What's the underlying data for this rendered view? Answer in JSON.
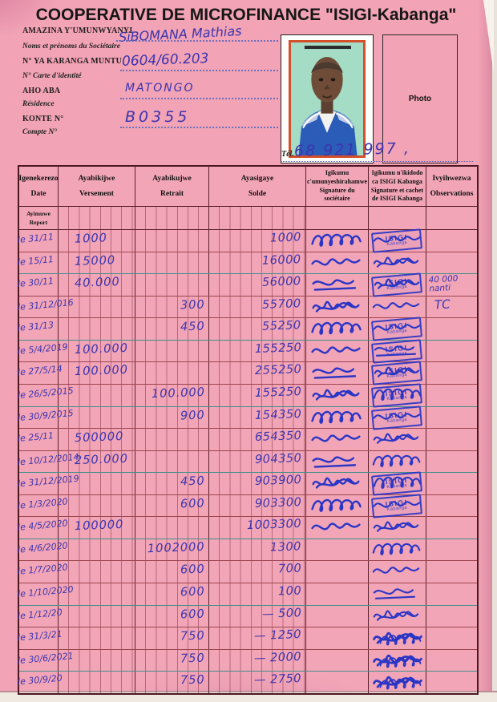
{
  "header": {
    "title": "COOPERATIVE DE MICROFINANCE \"ISIGI-Kabanga\""
  },
  "member": {
    "fields": [
      {
        "label_rn": "AMAZINA Y'UMUNWYANYI",
        "label_fr": "Noms et prénoms du Sociétaire",
        "value": "SiBOMANA Mathias"
      },
      {
        "label_rn": "N° YA KARANGA MUNTU",
        "label_fr": "N° Carte d'identité",
        "value": "0604/60.203"
      },
      {
        "label_rn": "AHO ABA",
        "label_fr": "Résidence",
        "value": "MATONGO"
      },
      {
        "label_rn": "KONTE N°",
        "label_fr": "Compte N°",
        "value": "B0355"
      }
    ],
    "photo_label": "Photo",
    "tel_label": "Tél.",
    "tel_value": "68 921 997 ,"
  },
  "table": {
    "columns": [
      {
        "line1": "Igenekerezo",
        "line2": "Date"
      },
      {
        "line1": "Ayabikijwe",
        "line2": "Versement"
      },
      {
        "line1": "Ayabikujwe",
        "line2": "Retrait"
      },
      {
        "line1": "Ayasigaye",
        "line2": "Solde"
      },
      {
        "line1": "Igikumu",
        "line2": "c'umunyeshirahamwe",
        "line3": "Signature du sociétaire"
      },
      {
        "line1": "Igikumu n'ikidodo",
        "line2": "ca ISIGI Kabanga",
        "line3": "Signature et cachet",
        "line4": "de ISIGI Kabanga"
      },
      {
        "line1": "Ivyihwezwa",
        "line2": "Observations"
      }
    ],
    "report_row": {
      "line1": "Ayimuwe",
      "line2": "Report"
    },
    "stamp": {
      "line1": "ISIGI",
      "line2": "Kabanga"
    },
    "rows": [
      {
        "date": "le 31/11",
        "versement": "1000",
        "retrait": "",
        "solde": "1000",
        "sig_member": true,
        "sig_coop": "stamp",
        "obs": ""
      },
      {
        "date": "le 15/11",
        "versement": "15000",
        "retrait": "",
        "solde": "16000",
        "sig_member": true,
        "sig_coop": "scribble",
        "obs": ""
      },
      {
        "date": "le 30/11",
        "versement": "40.000",
        "retrait": "",
        "solde": "56000",
        "sig_member": true,
        "sig_coop": "stamp",
        "obs": "40 000 nanti"
      },
      {
        "date": "le 31/12/016",
        "versement": "",
        "retrait": "300",
        "solde": "55700",
        "sig_member": true,
        "sig_coop": "scribble",
        "obs": "TC"
      },
      {
        "date": "le 31/13",
        "versement": "",
        "retrait": "450",
        "solde": "55250",
        "sig_member": true,
        "sig_coop": "stamp",
        "obs": ""
      },
      {
        "date": "le 5/4/2019",
        "versement": "100.000",
        "retrait": "",
        "solde": "155250",
        "sig_member": true,
        "sig_coop": "stamp",
        "obs": ""
      },
      {
        "date": "le 27/5/14",
        "versement": "100.000",
        "retrait": "",
        "solde": "255250",
        "sig_member": true,
        "sig_coop": "stamp",
        "obs": ""
      },
      {
        "date": "le 26/5/2015",
        "versement": "",
        "retrait": "100.000",
        "solde": "155250",
        "sig_member": true,
        "sig_coop": "stamp",
        "obs": ""
      },
      {
        "date": "le 30/9/2015",
        "versement": "",
        "retrait": "900",
        "solde": "154350",
        "sig_member": true,
        "sig_coop": "stamp",
        "obs": ""
      },
      {
        "date": "le 25/11",
        "versement": "500000",
        "retrait": "",
        "solde": "654350",
        "sig_member": true,
        "sig_coop": "scribble",
        "obs": ""
      },
      {
        "date": "le 10/12/2014",
        "versement": "250.000",
        "retrait": "",
        "solde": "904350",
        "sig_member": true,
        "sig_coop": "scribble",
        "obs": ""
      },
      {
        "date": "le 31/12/2019",
        "versement": "",
        "retrait": "450",
        "solde": "903900",
        "sig_member": true,
        "sig_coop": "stamp",
        "obs": ""
      },
      {
        "date": "le 1/3/2020",
        "versement": "",
        "retrait": "600",
        "solde": "903300",
        "sig_member": true,
        "sig_coop": "stamp",
        "obs": ""
      },
      {
        "date": "le 4/5/2020",
        "versement": "100000",
        "retrait": "",
        "solde": "1003300",
        "sig_member": true,
        "sig_coop": "scribble",
        "obs": ""
      },
      {
        "date": "le 4/6/2020",
        "versement": "",
        "retrait": "1002000",
        "solde": "1300",
        "sig_member": false,
        "sig_coop": "scribble",
        "obs": ""
      },
      {
        "date": "le 1/7/2020",
        "versement": "",
        "retrait": "600",
        "solde": "700",
        "sig_member": false,
        "sig_coop": "scribble",
        "obs": ""
      },
      {
        "date": "le 1/10/2020",
        "versement": "",
        "retrait": "600",
        "solde": "100",
        "sig_member": false,
        "sig_coop": "scribble",
        "obs": ""
      },
      {
        "date": "le 1/12/20",
        "versement": "",
        "retrait": "600",
        "solde": "— 500",
        "sig_member": false,
        "sig_coop": "scribble",
        "obs": ""
      },
      {
        "date": "le 31/3/21",
        "versement": "",
        "retrait": "750",
        "solde": "— 1250",
        "sig_member": false,
        "sig_coop": "dense",
        "obs": ""
      },
      {
        "date": "le 30/6/2021",
        "versement": "",
        "retrait": "750",
        "solde": "— 2000",
        "sig_member": false,
        "sig_coop": "dense",
        "obs": ""
      },
      {
        "date": "le 30/9/20",
        "versement": "",
        "retrait": "750",
        "solde": "— 2750",
        "sig_member": false,
        "sig_coop": "dense",
        "obs": ""
      }
    ]
  },
  "colors": {
    "paper_pink": "#f2a3b5",
    "ink_blue": "#3c34ae",
    "stamp_blue": "#2a35c5",
    "grid_red": "#9c4650",
    "grid_teal": "#3f8f8a",
    "border_dark": "#4d1722"
  }
}
